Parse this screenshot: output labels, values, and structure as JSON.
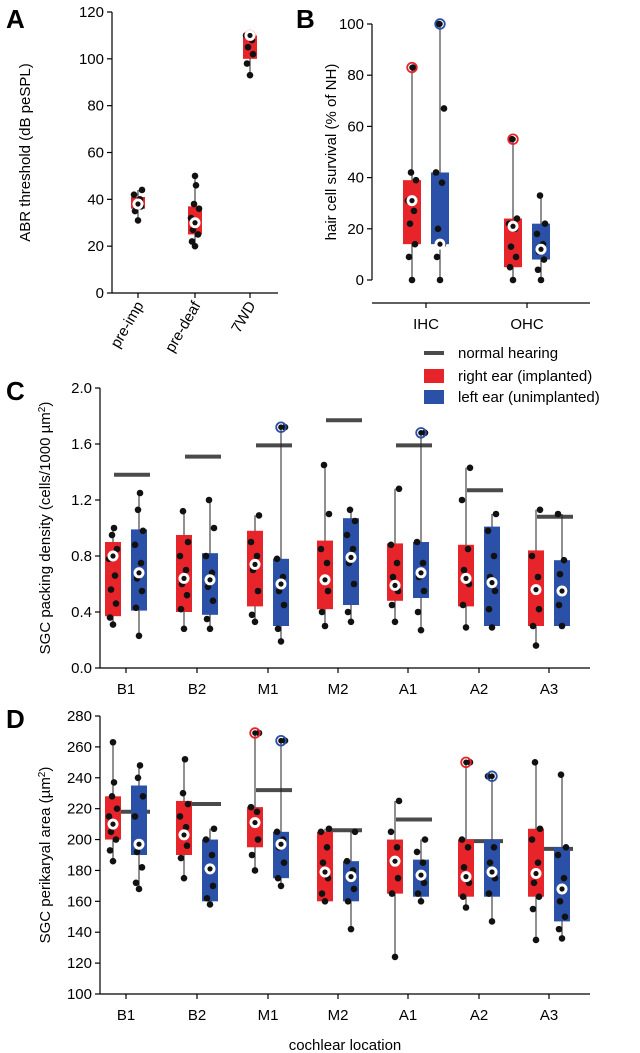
{
  "colors": {
    "right": "#e8242b",
    "left": "#2b50a8",
    "nh": "#4a4a4a",
    "dot": "#111111"
  },
  "legend": {
    "normal_hearing": "normal hearing",
    "right": "right ear (implanted)",
    "left": "left ear (unimplanted)"
  },
  "chart_data": [
    {
      "panel": "A",
      "type": "box",
      "ylabel": "ABR threshold (dB peSPL)",
      "ylim": [
        0,
        120
      ],
      "yticks": [
        0,
        20,
        40,
        60,
        80,
        100,
        120
      ],
      "categories": [
        "pre-imp",
        "pre-deaf",
        "7WD"
      ],
      "boxes": [
        {
          "cat": "pre-imp",
          "side": "right",
          "q1": 36,
          "q3": 41,
          "min": 31,
          "max": 44,
          "median": 38,
          "mean": 38,
          "points": [
            31,
            35,
            37,
            38,
            40,
            42,
            44
          ]
        },
        {
          "cat": "pre-deaf",
          "side": "right",
          "q1": 25,
          "q3": 37,
          "min": 20,
          "max": 50,
          "median": 30,
          "mean": 30,
          "points": [
            20,
            22,
            25,
            27,
            30,
            32,
            36,
            38,
            46,
            50
          ]
        },
        {
          "cat": "7WD",
          "side": "right",
          "q1": 100,
          "q3": 110,
          "min": 93,
          "max": 110,
          "median": 110,
          "mean": 110,
          "outlier": 110,
          "points": [
            93,
            98,
            102,
            105,
            108,
            110
          ]
        }
      ]
    },
    {
      "panel": "B",
      "type": "box",
      "ylabel": "hair cell survival (% of NH)",
      "ylim": [
        0,
        100
      ],
      "yticks": [
        0,
        20,
        40,
        60,
        80,
        100
      ],
      "categories": [
        "IHC",
        "OHC"
      ],
      "boxes": [
        {
          "cat": "IHC",
          "side": "right",
          "q1": 14,
          "q3": 39,
          "min": 0,
          "max": 83,
          "median": 31,
          "mean": 31,
          "outlier": 83,
          "points": [
            0,
            9,
            14,
            22,
            27,
            31,
            39,
            42,
            83
          ]
        },
        {
          "cat": "IHC",
          "side": "left",
          "q1": 14,
          "q3": 42,
          "min": 0,
          "max": 100,
          "median": 14,
          "mean": 14,
          "outlier": 100,
          "points": [
            0,
            9,
            14,
            20,
            38,
            42,
            67,
            100
          ]
        },
        {
          "cat": "OHC",
          "side": "right",
          "q1": 5,
          "q3": 24,
          "min": 0,
          "max": 55,
          "median": 21,
          "mean": 21,
          "outlier": 55,
          "points": [
            0,
            5,
            9,
            13,
            20,
            22,
            24,
            55
          ]
        },
        {
          "cat": "OHC",
          "side": "left",
          "q1": 8,
          "q3": 22,
          "min": 0,
          "max": 33,
          "median": 12,
          "mean": 12,
          "points": [
            0,
            4,
            8,
            11,
            14,
            18,
            22,
            33
          ]
        }
      ]
    },
    {
      "panel": "C",
      "type": "box",
      "ylabel": "SGC packing density (cells/1000 µm²)",
      "ylim": [
        0,
        2.0
      ],
      "yticks": [
        0,
        0.4,
        0.8,
        1.2,
        1.6,
        2.0
      ],
      "categories": [
        "B1",
        "B2",
        "M1",
        "M2",
        "A1",
        "A2",
        "A3"
      ],
      "normal_hearing": [
        1.38,
        1.51,
        1.59,
        1.77,
        1.59,
        1.27,
        1.08
      ],
      "boxes": [
        {
          "cat": "B1",
          "side": "right",
          "q1": 0.37,
          "q3": 0.9,
          "min": 0.31,
          "max": 1.0,
          "median": 0.8,
          "mean": 0.8,
          "points": [
            0.31,
            0.36,
            0.46,
            0.56,
            0.66,
            0.78,
            0.85,
            0.95,
            1.0
          ]
        },
        {
          "cat": "B1",
          "side": "left",
          "q1": 0.41,
          "q3": 0.99,
          "min": 0.23,
          "max": 1.25,
          "median": 0.68,
          "mean": 0.68,
          "points": [
            0.23,
            0.43,
            0.55,
            0.64,
            0.75,
            0.88,
            0.98,
            1.13,
            1.25
          ]
        },
        {
          "cat": "B2",
          "side": "right",
          "q1": 0.4,
          "q3": 0.95,
          "min": 0.28,
          "max": 1.12,
          "median": 0.64,
          "mean": 0.64,
          "points": [
            0.28,
            0.42,
            0.52,
            0.6,
            0.7,
            0.8,
            0.9,
            1.12
          ]
        },
        {
          "cat": "B2",
          "side": "left",
          "q1": 0.38,
          "q3": 0.82,
          "min": 0.28,
          "max": 1.2,
          "median": 0.63,
          "mean": 0.63,
          "points": [
            0.28,
            0.35,
            0.48,
            0.58,
            0.68,
            0.8,
            1.0,
            1.2
          ]
        },
        {
          "cat": "M1",
          "side": "right",
          "q1": 0.44,
          "q3": 0.98,
          "min": 0.33,
          "max": 1.09,
          "median": 0.74,
          "mean": 0.74,
          "points": [
            0.33,
            0.38,
            0.55,
            0.7,
            0.8,
            0.9,
            1.09
          ]
        },
        {
          "cat": "M1",
          "side": "left",
          "q1": 0.3,
          "q3": 0.78,
          "min": 0.19,
          "max": 1.72,
          "median": 0.6,
          "mean": 0.6,
          "outlier": 1.72,
          "points": [
            0.19,
            0.28,
            0.45,
            0.55,
            0.65,
            0.78,
            1.72
          ]
        },
        {
          "cat": "M2",
          "side": "right",
          "q1": 0.42,
          "q3": 0.91,
          "min": 0.3,
          "max": 1.45,
          "median": 0.63,
          "mean": 0.63,
          "points": [
            0.3,
            0.4,
            0.55,
            0.63,
            0.75,
            0.85,
            1.1,
            1.45
          ]
        },
        {
          "cat": "M2",
          "side": "left",
          "q1": 0.45,
          "q3": 1.07,
          "min": 0.33,
          "max": 1.13,
          "median": 0.79,
          "mean": 0.79,
          "points": [
            0.33,
            0.4,
            0.6,
            0.75,
            0.85,
            0.95,
            1.05,
            1.13
          ]
        },
        {
          "cat": "A1",
          "side": "right",
          "q1": 0.48,
          "q3": 0.89,
          "min": 0.33,
          "max": 1.28,
          "median": 0.59,
          "mean": 0.59,
          "points": [
            0.33,
            0.45,
            0.55,
            0.65,
            0.75,
            0.88,
            1.28
          ]
        },
        {
          "cat": "A1",
          "side": "left",
          "q1": 0.5,
          "q3": 0.9,
          "min": 0.27,
          "max": 1.68,
          "median": 0.68,
          "mean": 0.68,
          "outlier": 1.68,
          "points": [
            0.27,
            0.4,
            0.55,
            0.65,
            0.75,
            0.9,
            1.68
          ]
        },
        {
          "cat": "A2",
          "side": "right",
          "q1": 0.44,
          "q3": 0.88,
          "min": 0.29,
          "max": 1.43,
          "median": 0.64,
          "mean": 0.64,
          "points": [
            0.29,
            0.45,
            0.6,
            0.7,
            0.85,
            1.2,
            1.43
          ]
        },
        {
          "cat": "A2",
          "side": "left",
          "q1": 0.3,
          "q3": 1.01,
          "min": 0.29,
          "max": 1.1,
          "median": 0.61,
          "mean": 0.61,
          "points": [
            0.29,
            0.42,
            0.55,
            0.65,
            0.8,
            0.98,
            1.1
          ]
        },
        {
          "cat": "A3",
          "side": "right",
          "q1": 0.3,
          "q3": 0.84,
          "min": 0.16,
          "max": 1.13,
          "median": 0.56,
          "mean": 0.56,
          "points": [
            0.16,
            0.3,
            0.42,
            0.55,
            0.65,
            0.8,
            1.13
          ]
        },
        {
          "cat": "A3",
          "side": "left",
          "q1": 0.3,
          "q3": 0.77,
          "min": 0.3,
          "max": 1.1,
          "median": 0.55,
          "mean": 0.55,
          "points": [
            0.3,
            0.45,
            0.55,
            0.67,
            0.77,
            1.1
          ]
        }
      ]
    },
    {
      "panel": "D",
      "type": "box",
      "ylabel": "SGC perikaryal area (µm²)",
      "xlabel": "cochlear location",
      "ylim": [
        100,
        280
      ],
      "yticks": [
        100,
        120,
        140,
        160,
        180,
        200,
        220,
        240,
        260,
        280
      ],
      "categories": [
        "B1",
        "B2",
        "M1",
        "M2",
        "A1",
        "A2",
        "A3"
      ],
      "normal_hearing": [
        218,
        223,
        232,
        206,
        213,
        199,
        194
      ],
      "boxes": [
        {
          "cat": "B1",
          "side": "right",
          "q1": 200,
          "q3": 228,
          "min": 186,
          "max": 263,
          "median": 210,
          "mean": 210,
          "points": [
            186,
            193,
            200,
            205,
            210,
            215,
            220,
            228,
            237,
            263
          ]
        },
        {
          "cat": "B1",
          "side": "left",
          "q1": 190,
          "q3": 235,
          "min": 168,
          "max": 248,
          "median": 197,
          "mean": 197,
          "points": [
            168,
            172,
            182,
            192,
            197,
            215,
            228,
            240,
            248
          ]
        },
        {
          "cat": "B2",
          "side": "right",
          "q1": 190,
          "q3": 225,
          "min": 175,
          "max": 252,
          "median": 203,
          "mean": 203,
          "points": [
            175,
            188,
            196,
            203,
            208,
            215,
            223,
            230,
            252
          ]
        },
        {
          "cat": "B2",
          "side": "left",
          "q1": 160,
          "q3": 200,
          "min": 158,
          "max": 207,
          "median": 181,
          "mean": 181,
          "points": [
            158,
            162,
            170,
            180,
            190,
            200,
            207
          ]
        },
        {
          "cat": "M1",
          "side": "right",
          "q1": 195,
          "q3": 221,
          "min": 180,
          "max": 269,
          "median": 211,
          "mean": 211,
          "outlier": 269,
          "points": [
            180,
            190,
            200,
            210,
            218,
            221,
            269
          ]
        },
        {
          "cat": "M1",
          "side": "left",
          "q1": 175,
          "q3": 205,
          "min": 170,
          "max": 264,
          "median": 197,
          "mean": 197,
          "outlier": 264,
          "points": [
            170,
            175,
            185,
            195,
            200,
            205,
            264
          ]
        },
        {
          "cat": "M2",
          "side": "right",
          "q1": 160,
          "q3": 205,
          "min": 160,
          "max": 207,
          "median": 179,
          "mean": 179,
          "points": [
            160,
            165,
            175,
            185,
            195,
            205,
            207
          ]
        },
        {
          "cat": "M2",
          "side": "left",
          "q1": 160,
          "q3": 186,
          "min": 142,
          "max": 205,
          "median": 176,
          "mean": 176,
          "points": [
            142,
            160,
            168,
            175,
            180,
            186,
            205
          ]
        },
        {
          "cat": "A1",
          "side": "right",
          "q1": 165,
          "q3": 200,
          "min": 124,
          "max": 225,
          "median": 186,
          "mean": 186,
          "points": [
            124,
            165,
            175,
            185,
            195,
            205,
            225
          ]
        },
        {
          "cat": "A1",
          "side": "left",
          "q1": 163,
          "q3": 187,
          "min": 160,
          "max": 200,
          "median": 177,
          "mean": 177,
          "points": [
            160,
            165,
            172,
            178,
            185,
            192,
            200
          ]
        },
        {
          "cat": "A2",
          "side": "right",
          "q1": 163,
          "q3": 200,
          "min": 156,
          "max": 250,
          "median": 176,
          "mean": 176,
          "outlier": 250,
          "points": [
            156,
            163,
            172,
            182,
            195,
            200,
            250
          ]
        },
        {
          "cat": "A2",
          "side": "left",
          "q1": 163,
          "q3": 200,
          "min": 147,
          "max": 241,
          "median": 179,
          "mean": 179,
          "outlier": 241,
          "points": [
            147,
            165,
            175,
            185,
            195,
            241
          ]
        },
        {
          "cat": "A3",
          "side": "right",
          "q1": 163,
          "q3": 207,
          "min": 135,
          "max": 250,
          "median": 178,
          "mean": 178,
          "points": [
            135,
            155,
            163,
            172,
            185,
            200,
            207,
            250
          ]
        },
        {
          "cat": "A3",
          "side": "left",
          "q1": 147,
          "q3": 195,
          "min": 136,
          "max": 242,
          "median": 168,
          "mean": 168,
          "points": [
            136,
            142,
            150,
            160,
            175,
            190,
            195,
            242
          ]
        }
      ]
    }
  ]
}
